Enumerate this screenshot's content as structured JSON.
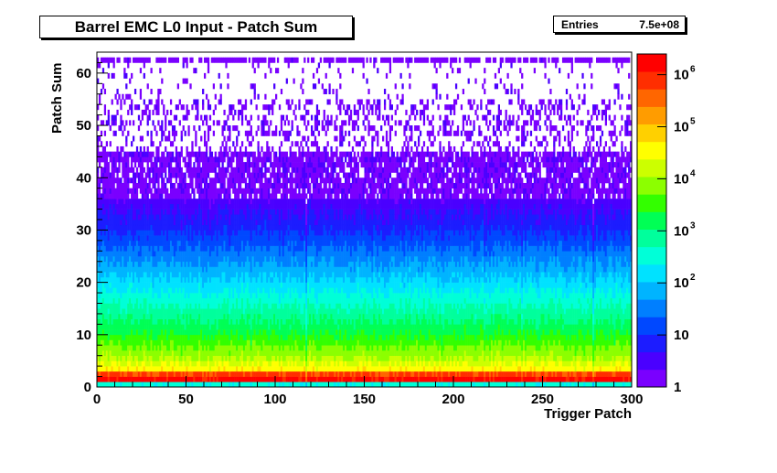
{
  "chart_data": {
    "type": "heatmap",
    "title": "Barrel EMC L0 Input - Patch Sum",
    "xlabel": "Trigger Patch",
    "ylabel": "Patch Sum",
    "xlim": [
      0,
      300
    ],
    "ylim": [
      0,
      64
    ],
    "x_ticks": [
      "0",
      "50",
      "100",
      "150",
      "200",
      "250",
      "300"
    ],
    "y_ticks": [
      "0",
      "10",
      "20",
      "30",
      "40",
      "50",
      "60"
    ],
    "z_scale": "log",
    "zlim": [
      1,
      2500000
    ],
    "colorbar_ticks": [
      {
        "base": "1",
        "exp": ""
      },
      {
        "base": "10",
        "exp": ""
      },
      {
        "base": "10",
        "exp": "2"
      },
      {
        "base": "10",
        "exp": "3"
      },
      {
        "base": "10",
        "exp": "4"
      },
      {
        "base": "10",
        "exp": "5"
      },
      {
        "base": "10",
        "exp": "6"
      }
    ],
    "stats": {
      "label": "Entries",
      "value": "7.5e+08"
    },
    "count_profile_by_patch_sum": [
      {
        "patch_sum": 0,
        "count": 300
      },
      {
        "patch_sum": 1,
        "count": 1500000
      },
      {
        "patch_sum": 2,
        "count": 600000
      },
      {
        "patch_sum": 3,
        "count": 40000
      },
      {
        "patch_sum": 5,
        "count": 12000
      },
      {
        "patch_sum": 10,
        "count": 2000
      },
      {
        "patch_sum": 15,
        "count": 500
      },
      {
        "patch_sum": 20,
        "count": 120
      },
      {
        "patch_sum": 25,
        "count": 30
      },
      {
        "patch_sum": 30,
        "count": 8
      },
      {
        "patch_sum": 35,
        "count": 3
      },
      {
        "patch_sum": 40,
        "count": 1.5
      },
      {
        "patch_sum": 50,
        "count": 1
      },
      {
        "patch_sum": 62,
        "count": 1.5
      }
    ],
    "colors": {
      "palette": [
        "#7a00ff",
        "#4a00ff",
        "#1c1cff",
        "#0048ff",
        "#007fff",
        "#00b4ff",
        "#00e2ff",
        "#00ffd8",
        "#00ff9c",
        "#00ff55",
        "#33ff00",
        "#8cff00",
        "#ccff00",
        "#ffff00",
        "#ffd000",
        "#ff9c00",
        "#ff6600",
        "#ff2e00",
        "#ff0000"
      ]
    }
  }
}
